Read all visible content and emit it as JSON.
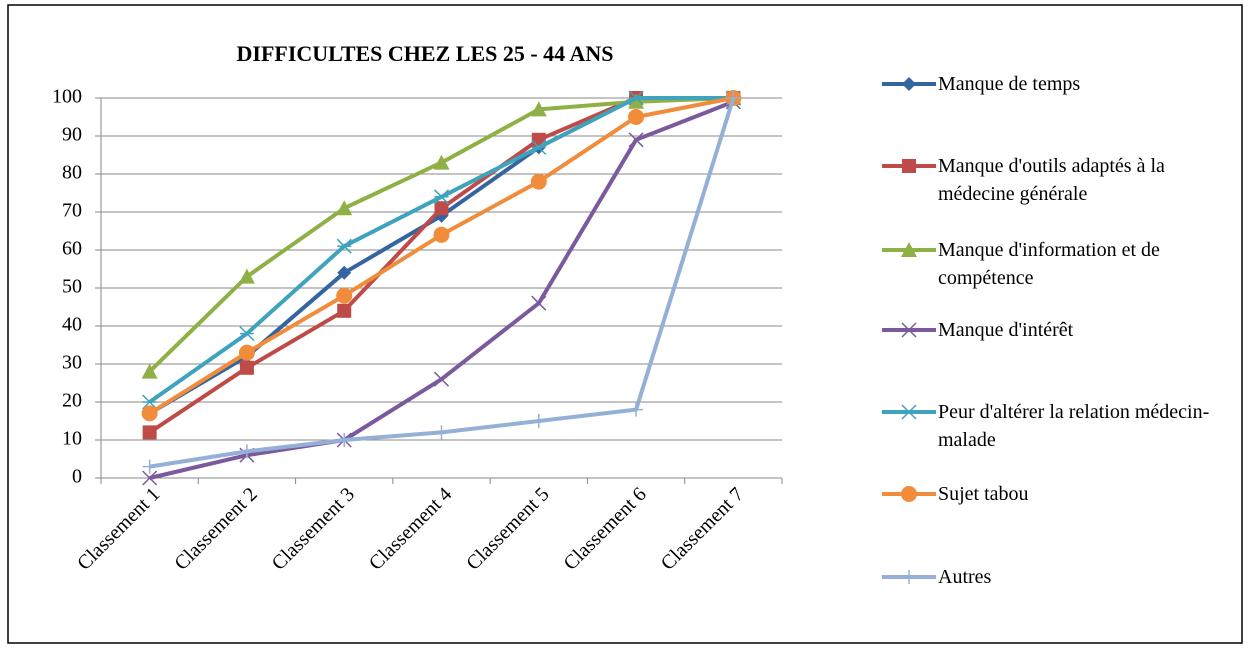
{
  "chart_data": {
    "type": "line",
    "title": "DIFFICULTES CHEZ LES 25 - 44 ANS",
    "categories": [
      "Classement 1",
      "Classement 2",
      "Classement 3",
      "Classement 4",
      "Classement 5",
      "Classement 6",
      "Classement 7"
    ],
    "ylim": [
      0,
      100
    ],
    "yticks": [
      0,
      10,
      20,
      30,
      40,
      50,
      60,
      70,
      80,
      90,
      100
    ],
    "grid": true,
    "legend": "right",
    "series": [
      {
        "name": "Manque de temps",
        "color": "#3565a0",
        "marker": "diamond",
        "values": [
          17,
          32,
          54,
          69,
          87,
          100,
          100
        ]
      },
      {
        "name": "Manque d'outils adaptés à la médecine générale",
        "color": "#be4b48",
        "marker": "square",
        "values": [
          12,
          29,
          44,
          71,
          89,
          100,
          100
        ]
      },
      {
        "name": "Manque d'information et de compétence",
        "color": "#8fb045",
        "marker": "triangle",
        "values": [
          28,
          53,
          71,
          83,
          97,
          99,
          100
        ]
      },
      {
        "name": "Manque d'intérêt",
        "color": "#7a5a9c",
        "marker": "x",
        "values": [
          0,
          6,
          10,
          26,
          46,
          89,
          99
        ]
      },
      {
        "name": "Peur d'altérer la relation médecin-malade",
        "color": "#3fa3bd",
        "marker": "asterisk",
        "values": [
          20,
          38,
          61,
          74,
          87,
          100,
          100
        ]
      },
      {
        "name": "Sujet tabou",
        "color": "#f08c3a",
        "marker": "circle",
        "values": [
          17,
          33,
          48,
          64,
          78,
          95,
          100
        ]
      },
      {
        "name": "Autres",
        "color": "#94b0d6",
        "marker": "plus",
        "values": [
          3,
          7,
          10,
          12,
          15,
          18,
          100
        ]
      }
    ]
  }
}
